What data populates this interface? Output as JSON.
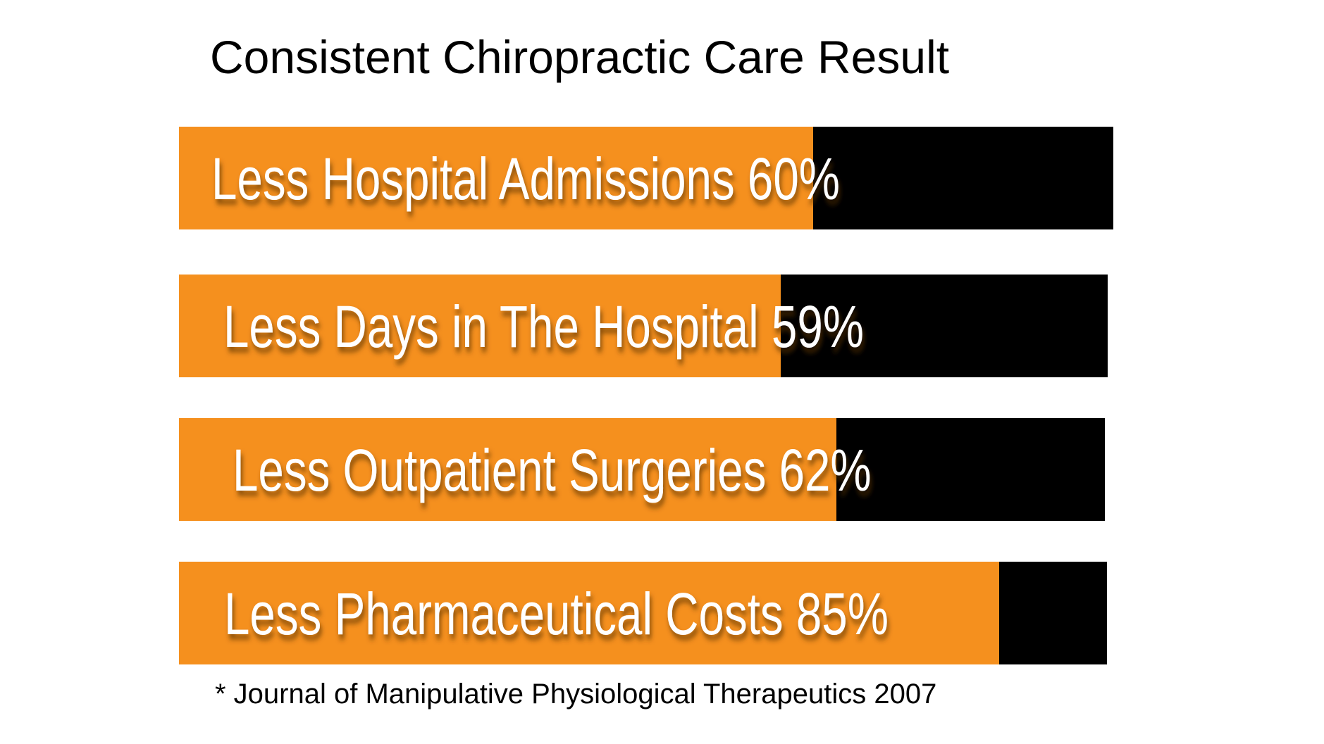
{
  "chart_data": {
    "type": "bar",
    "orientation": "horizontal",
    "title": "Consistent Chiropractic Care Result",
    "categories": [
      "Less Hospital Admissions",
      "Less Days in The Hospital",
      "Less Outpatient Surgeries",
      "Less Pharmaceutical Costs"
    ],
    "bar_labels": [
      "Less Hospital Admissions  60%",
      "Less Days in The Hospital  59%",
      "Less Outpatient Surgeries 62%",
      "Less Pharmaceutical Costs 85%"
    ],
    "values": [
      60,
      59,
      62,
      85
    ],
    "unit": "%",
    "xlim": [
      0,
      100
    ],
    "grid": false,
    "legend": "none",
    "footnote": "* Journal of Manipulative Physiological Therapeutics 2007"
  },
  "colors": {
    "bar_fill": "#F5901E",
    "bar_remainder": "#000000",
    "label_text": "#FFFFFF",
    "background": "#FFFFFF",
    "text": "#000000"
  }
}
